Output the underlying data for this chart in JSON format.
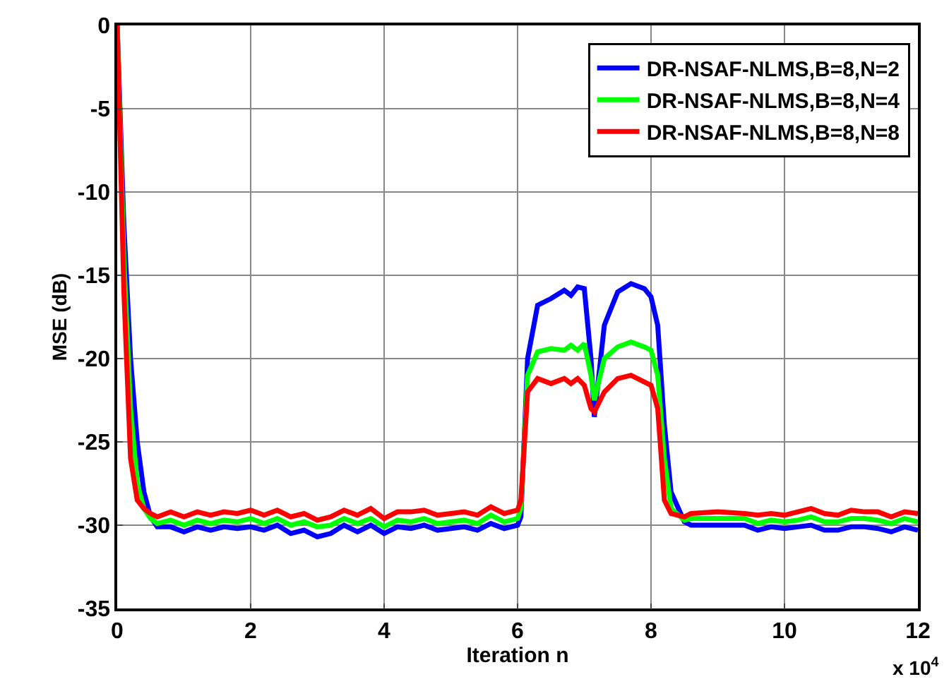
{
  "chart_data": {
    "type": "line",
    "xlabel": "Iteration n",
    "ylabel": "MSE (dB)",
    "x": [
      0,
      0.1,
      0.2,
      0.3,
      0.4,
      0.5,
      0.6,
      0.8,
      1.0,
      1.2,
      1.4,
      1.6,
      1.8,
      2.0,
      2.2,
      2.4,
      2.6,
      2.8,
      3.0,
      3.2,
      3.4,
      3.6,
      3.8,
      4.0,
      4.2,
      4.4,
      4.6,
      4.8,
      5.0,
      5.2,
      5.4,
      5.6,
      5.8,
      6.0,
      6.05,
      6.15,
      6.3,
      6.5,
      6.7,
      6.8,
      6.9,
      7.0,
      7.1,
      7.15,
      7.3,
      7.5,
      7.7,
      7.9,
      8.0,
      8.1,
      8.2,
      8.3,
      8.5,
      8.6,
      9.0,
      9.4,
      9.6,
      9.8,
      10.0,
      10.2,
      10.4,
      10.6,
      10.8,
      11.0,
      11.2,
      11.4,
      11.6,
      11.8,
      12
    ],
    "series": [
      {
        "name": "DR-NSAF-NLMS,B=8,N=2",
        "color": "#0000ff",
        "values": [
          0,
          -12,
          -20,
          -25,
          -28,
          -29.5,
          -30.1,
          -30.1,
          -30.4,
          -30.1,
          -30.3,
          -30.1,
          -30.2,
          -30.1,
          -30.3,
          -30.0,
          -30.5,
          -30.3,
          -30.7,
          -30.5,
          -30.0,
          -30.4,
          -30.0,
          -30.5,
          -30.1,
          -30.2,
          -30.0,
          -30.3,
          -30.2,
          -30.1,
          -30.3,
          -29.9,
          -30.2,
          -30.0,
          -29.5,
          -20,
          -16.8,
          -16.4,
          -15.9,
          -16.2,
          -15.7,
          -15.8,
          -20,
          -23.5,
          -18,
          -16,
          -15.5,
          -15.8,
          -16.3,
          -18,
          -24,
          -28,
          -29.8,
          -30.0,
          -30.0,
          -30.0,
          -30.3,
          -30.1,
          -30.2,
          -30.1,
          -30.0,
          -30.3,
          -30.3,
          -30.1,
          -30.1,
          -30.2,
          -30.4,
          -30.1,
          -30.3
        ]
      },
      {
        "name": "DR-NSAF-NLMS,B=8,N=4",
        "color": "#00ff00",
        "values": [
          0,
          -14,
          -23,
          -27.5,
          -29,
          -29.6,
          -29.9,
          -29.7,
          -30.0,
          -29.7,
          -29.9,
          -29.7,
          -29.8,
          -29.6,
          -29.9,
          -29.6,
          -30.0,
          -29.8,
          -30.1,
          -30.0,
          -29.6,
          -29.9,
          -29.6,
          -30.1,
          -29.7,
          -29.8,
          -29.6,
          -29.9,
          -29.8,
          -29.7,
          -29.9,
          -29.4,
          -29.8,
          -29.6,
          -29.0,
          -21,
          -19.6,
          -19.4,
          -19.5,
          -19.2,
          -19.5,
          -19.1,
          -21,
          -22.5,
          -20,
          -19.3,
          -19.0,
          -19.3,
          -19.5,
          -21,
          -26,
          -29,
          -29.7,
          -29.6,
          -29.6,
          -29.6,
          -29.9,
          -29.7,
          -29.8,
          -29.7,
          -29.5,
          -29.8,
          -29.8,
          -29.6,
          -29.6,
          -29.7,
          -29.9,
          -29.6,
          -29.8
        ]
      },
      {
        "name": "DR-NSAF-NLMS,B=8,N=8",
        "color": "#ff0000",
        "values": [
          0,
          -16,
          -26,
          -28.5,
          -29,
          -29.3,
          -29.5,
          -29.2,
          -29.5,
          -29.2,
          -29.4,
          -29.2,
          -29.3,
          -29.1,
          -29.4,
          -29.1,
          -29.5,
          -29.3,
          -29.7,
          -29.5,
          -29.1,
          -29.4,
          -29.0,
          -29.6,
          -29.2,
          -29.2,
          -29.1,
          -29.4,
          -29.3,
          -29.2,
          -29.4,
          -28.9,
          -29.3,
          -29.1,
          -28.5,
          -22,
          -21.2,
          -21.5,
          -21.2,
          -21.5,
          -21.2,
          -21.6,
          -23.0,
          -23.2,
          -22,
          -21.2,
          -21.0,
          -21.4,
          -21.6,
          -23,
          -28.5,
          -29.3,
          -29.5,
          -29.3,
          -29.2,
          -29.3,
          -29.4,
          -29.3,
          -29.4,
          -29.2,
          -29.0,
          -29.3,
          -29.4,
          -29.1,
          -29.2,
          -29.2,
          -29.5,
          -29.2,
          -29.3
        ]
      }
    ],
    "xlim": [
      0,
      12
    ],
    "xticks": [
      0,
      2,
      4,
      6,
      8,
      10,
      12
    ],
    "ylim": [
      -35,
      0
    ],
    "yticks": [
      -35,
      -30,
      -25,
      -20,
      -15,
      -10,
      -5,
      0
    ],
    "annotations": [
      "x 10$^{4}$"
    ],
    "grid": true,
    "legend": "top right",
    "line_style": "solid",
    "marker": "none"
  }
}
